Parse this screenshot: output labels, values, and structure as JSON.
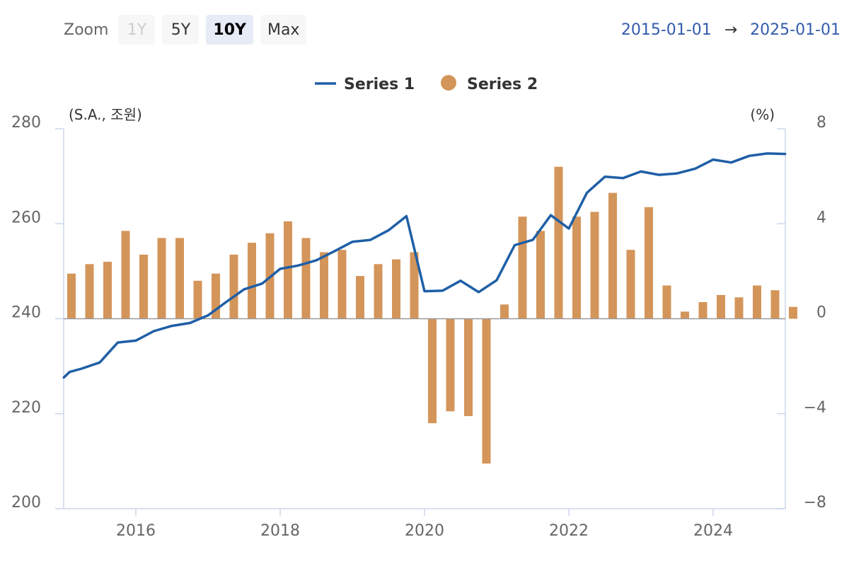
{
  "toolbar": {
    "zoom_label": "Zoom",
    "buttons": [
      {
        "label": "1Y",
        "state": "disabled"
      },
      {
        "label": "5Y",
        "state": "normal"
      },
      {
        "label": "10Y",
        "state": "selected"
      },
      {
        "label": "Max",
        "state": "normal"
      }
    ]
  },
  "range": {
    "from": "2015-01-01",
    "arrow": "→",
    "to": "2025-01-01"
  },
  "chart_data": {
    "type": "bar",
    "title": "",
    "legend_position": "top-center",
    "grid": false,
    "x": {
      "range": [
        2015.0,
        2025.0
      ],
      "ticks": [
        2016,
        2018,
        2020,
        2022,
        2024
      ],
      "tick_labels": [
        "2016",
        "2018",
        "2020",
        "2022",
        "2024"
      ]
    },
    "y_left": {
      "label": "(S.A., 조원)",
      "range": [
        200,
        280
      ],
      "ticks": [
        200,
        220,
        240,
        260,
        280
      ],
      "tick_labels": [
        "200",
        "220",
        "240",
        "260",
        "280"
      ]
    },
    "y_right": {
      "label": "(%)",
      "range": [
        -8,
        8
      ],
      "ticks": [
        -8,
        -4,
        0,
        4,
        8
      ],
      "tick_labels": [
        "−8",
        "−4",
        "0",
        "4",
        "8"
      ]
    },
    "series": [
      {
        "name": "Series 1",
        "type": "line",
        "axis": "left",
        "color": "#1f5fa6",
        "points": [
          [
            "2015-01-01",
            227.6
          ],
          [
            "2015-02-01",
            228.8
          ],
          [
            "2015-04-01",
            229.5
          ],
          [
            "2015-07-01",
            230.8
          ],
          [
            "2015-10-01",
            235.0
          ],
          [
            "2016-01-01",
            235.4
          ],
          [
            "2016-04-01",
            237.4
          ],
          [
            "2016-07-01",
            238.5
          ],
          [
            "2016-10-01",
            239.1
          ],
          [
            "2017-01-01",
            240.7
          ],
          [
            "2017-04-01",
            243.5
          ],
          [
            "2017-07-01",
            246.2
          ],
          [
            "2017-10-01",
            247.4
          ],
          [
            "2018-01-01",
            250.5
          ],
          [
            "2018-04-01",
            251.2
          ],
          [
            "2018-07-01",
            252.3
          ],
          [
            "2018-10-01",
            254.2
          ],
          [
            "2019-01-01",
            256.2
          ],
          [
            "2019-04-01",
            256.6
          ],
          [
            "2019-07-01",
            258.6
          ],
          [
            "2019-10-01",
            261.6
          ],
          [
            "2020-01-01",
            245.8
          ],
          [
            "2020-04-01",
            245.9
          ],
          [
            "2020-07-01",
            248.0
          ],
          [
            "2020-10-01",
            245.6
          ],
          [
            "2021-01-01",
            248.1
          ],
          [
            "2021-04-01",
            255.5
          ],
          [
            "2021-07-01",
            256.6
          ],
          [
            "2021-10-01",
            261.8
          ],
          [
            "2022-01-01",
            259.0
          ],
          [
            "2022-04-01",
            266.5
          ],
          [
            "2022-07-01",
            269.9
          ],
          [
            "2022-10-01",
            269.6
          ],
          [
            "2023-01-01",
            271.0
          ],
          [
            "2023-04-01",
            270.3
          ],
          [
            "2023-07-01",
            270.6
          ],
          [
            "2023-10-01",
            271.6
          ],
          [
            "2024-01-01",
            273.5
          ],
          [
            "2024-04-01",
            272.9
          ],
          [
            "2024-07-01",
            274.3
          ],
          [
            "2024-10-01",
            274.8
          ],
          [
            "2025-01-01",
            274.7
          ]
        ]
      },
      {
        "name": "Series 2",
        "type": "column",
        "axis": "right",
        "color": "#d4955a",
        "points": [
          [
            "2015-01-01",
            1.9
          ],
          [
            "2015-04-01",
            2.3
          ],
          [
            "2015-07-01",
            2.4
          ],
          [
            "2015-10-01",
            3.7
          ],
          [
            "2016-01-01",
            2.7
          ],
          [
            "2016-04-01",
            3.4
          ],
          [
            "2016-07-01",
            3.4
          ],
          [
            "2016-10-01",
            1.6
          ],
          [
            "2017-01-01",
            1.9
          ],
          [
            "2017-04-01",
            2.7
          ],
          [
            "2017-07-01",
            3.2
          ],
          [
            "2017-10-01",
            3.6
          ],
          [
            "2018-01-01",
            4.1
          ],
          [
            "2018-04-01",
            3.4
          ],
          [
            "2018-07-01",
            2.8
          ],
          [
            "2018-10-01",
            2.9
          ],
          [
            "2019-01-01",
            1.8
          ],
          [
            "2019-04-01",
            2.3
          ],
          [
            "2019-07-01",
            2.5
          ],
          [
            "2019-10-01",
            2.8
          ],
          [
            "2020-01-01",
            -4.4
          ],
          [
            "2020-04-01",
            -3.9
          ],
          [
            "2020-07-01",
            -4.1
          ],
          [
            "2020-10-01",
            -6.1
          ],
          [
            "2021-01-01",
            0.6
          ],
          [
            "2021-04-01",
            4.3
          ],
          [
            "2021-07-01",
            3.7
          ],
          [
            "2021-10-01",
            6.4
          ],
          [
            "2022-01-01",
            4.3
          ],
          [
            "2022-04-01",
            4.5
          ],
          [
            "2022-07-01",
            5.3
          ],
          [
            "2022-10-01",
            2.9
          ],
          [
            "2023-01-01",
            4.7
          ],
          [
            "2023-04-01",
            1.4
          ],
          [
            "2023-07-01",
            0.3
          ],
          [
            "2023-10-01",
            0.7
          ],
          [
            "2024-01-01",
            1.0
          ],
          [
            "2024-04-01",
            0.9
          ],
          [
            "2024-07-01",
            1.4
          ],
          [
            "2024-10-01",
            1.2
          ],
          [
            "2025-01-01",
            0.5
          ]
        ]
      }
    ]
  }
}
